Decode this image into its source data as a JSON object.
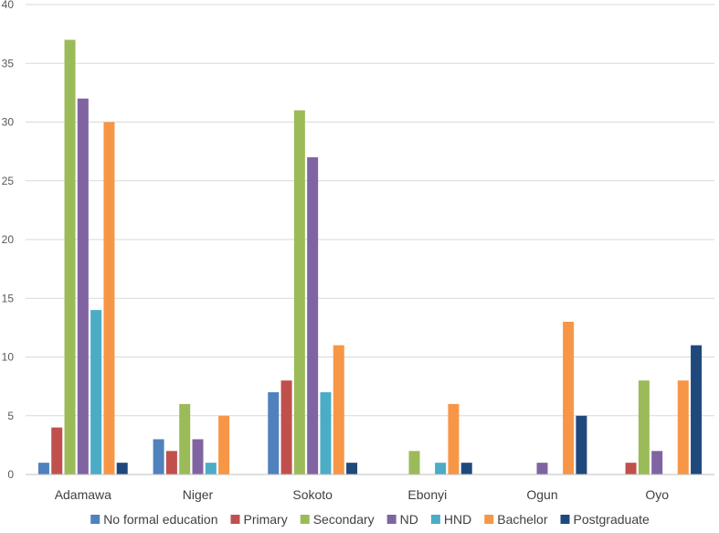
{
  "chart_data": {
    "type": "bar",
    "title": "",
    "xlabel": "",
    "ylabel": "",
    "ylim": [
      0,
      40
    ],
    "yticks": [
      0,
      5,
      10,
      15,
      20,
      25,
      30,
      35,
      40
    ],
    "grid": true,
    "legend_position": "bottom",
    "categories": [
      "Adamawa",
      "Niger",
      "Sokoto",
      "Ebonyi",
      "Ogun",
      "Oyo"
    ],
    "series": [
      {
        "name": "No formal education",
        "color": "#4f81bd",
        "values": [
          1,
          3,
          7,
          0,
          0,
          0
        ]
      },
      {
        "name": "Primary",
        "color": "#c0504d",
        "values": [
          4,
          2,
          8,
          0,
          0,
          1
        ]
      },
      {
        "name": "Secondary",
        "color": "#9bbb59",
        "values": [
          37,
          6,
          31,
          2,
          0,
          8
        ]
      },
      {
        "name": "ND",
        "color": "#8064a2",
        "values": [
          32,
          3,
          27,
          0,
          1,
          2
        ]
      },
      {
        "name": "HND",
        "color": "#4bacc6",
        "values": [
          14,
          1,
          7,
          1,
          0,
          0
        ]
      },
      {
        "name": "Bachelor",
        "color": "#f79646",
        "values": [
          30,
          5,
          11,
          6,
          13,
          8
        ]
      },
      {
        "name": "Postgraduate",
        "color": "#1f497d",
        "values": [
          1,
          0,
          1,
          1,
          5,
          11
        ]
      }
    ]
  }
}
